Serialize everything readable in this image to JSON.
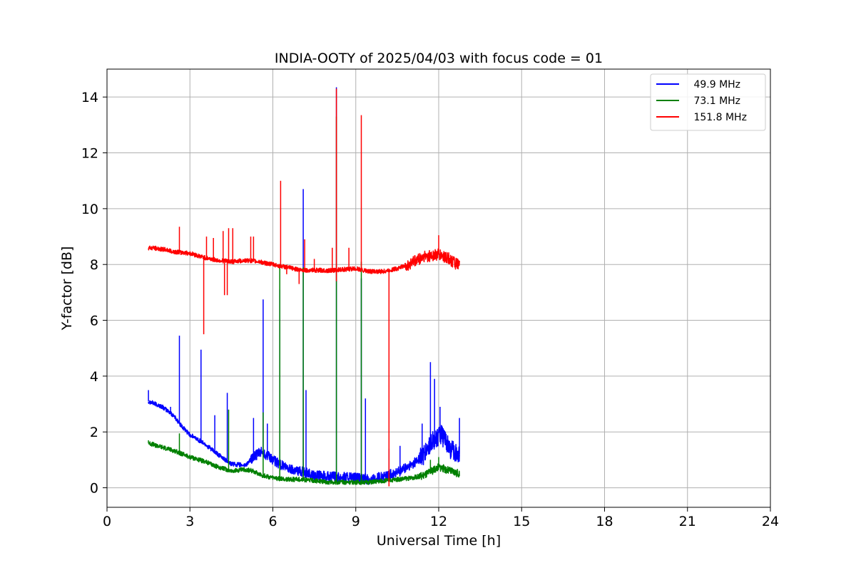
{
  "chart_data": {
    "type": "line",
    "title": "INDIA-OOTY of 2025/04/03 with focus code = 01",
    "xlabel": "Universal Time [h]",
    "ylabel": "Y-factor [dB]",
    "xlim": [
      0,
      24
    ],
    "ylim": [
      -0.7,
      15
    ],
    "xticks": [
      0,
      3,
      6,
      9,
      12,
      15,
      18,
      21,
      24
    ],
    "yticks": [
      0,
      2,
      4,
      6,
      8,
      10,
      12,
      14
    ],
    "grid": true,
    "legend_position": "top-right",
    "series": [
      {
        "name": " 49.9 MHz",
        "color": "#0000ff",
        "baseline": [
          [
            1.5,
            3.1
          ],
          [
            2.0,
            2.9
          ],
          [
            2.4,
            2.6
          ],
          [
            2.7,
            2.2
          ],
          [
            3.0,
            1.9
          ],
          [
            3.5,
            1.6
          ],
          [
            4.0,
            1.2
          ],
          [
            4.5,
            0.85
          ],
          [
            5.0,
            0.8
          ],
          [
            5.3,
            1.1
          ],
          [
            5.6,
            1.3
          ],
          [
            6.0,
            1.0
          ],
          [
            6.5,
            0.7
          ],
          [
            7.0,
            0.6
          ],
          [
            7.5,
            0.45
          ],
          [
            8.0,
            0.4
          ],
          [
            8.5,
            0.4
          ],
          [
            9.0,
            0.35
          ],
          [
            9.5,
            0.3
          ],
          [
            10.0,
            0.4
          ],
          [
            10.5,
            0.55
          ],
          [
            11.0,
            0.8
          ],
          [
            11.5,
            1.2
          ],
          [
            11.8,
            1.7
          ],
          [
            12.1,
            1.9
          ],
          [
            12.4,
            1.4
          ],
          [
            12.75,
            1.2
          ]
        ],
        "spikes": [
          [
            1.5,
            3.5
          ],
          [
            2.3,
            2.9
          ],
          [
            2.62,
            5.45
          ],
          [
            3.4,
            4.95
          ],
          [
            3.9,
            2.6
          ],
          [
            4.35,
            3.4
          ],
          [
            5.3,
            2.5
          ],
          [
            5.65,
            6.75
          ],
          [
            5.8,
            2.3
          ],
          [
            6.25,
            7.1
          ],
          [
            7.1,
            10.7
          ],
          [
            7.2,
            3.5
          ],
          [
            8.3,
            14.35
          ],
          [
            9.2,
            7.5
          ],
          [
            9.35,
            3.2
          ],
          [
            10.2,
            1.4
          ],
          [
            10.6,
            1.5
          ],
          [
            11.4,
            2.3
          ],
          [
            11.7,
            4.5
          ],
          [
            11.85,
            3.9
          ],
          [
            12.05,
            2.9
          ],
          [
            12.75,
            2.5
          ]
        ]
      },
      {
        "name": " 73.1 MHz",
        "color": "#008000",
        "baseline": [
          [
            1.5,
            1.6
          ],
          [
            2.0,
            1.45
          ],
          [
            2.5,
            1.3
          ],
          [
            3.0,
            1.1
          ],
          [
            3.5,
            0.95
          ],
          [
            4.0,
            0.75
          ],
          [
            4.5,
            0.6
          ],
          [
            5.0,
            0.65
          ],
          [
            5.3,
            0.6
          ],
          [
            5.6,
            0.45
          ],
          [
            6.0,
            0.35
          ],
          [
            6.5,
            0.3
          ],
          [
            7.0,
            0.3
          ],
          [
            7.5,
            0.25
          ],
          [
            8.0,
            0.2
          ],
          [
            8.5,
            0.2
          ],
          [
            9.0,
            0.2
          ],
          [
            9.5,
            0.2
          ],
          [
            10.0,
            0.25
          ],
          [
            10.5,
            0.3
          ],
          [
            11.0,
            0.35
          ],
          [
            11.5,
            0.45
          ],
          [
            12.0,
            0.75
          ],
          [
            12.4,
            0.6
          ],
          [
            12.75,
            0.5
          ]
        ],
        "spikes": [
          [
            1.5,
            1.7
          ],
          [
            2.62,
            1.95
          ],
          [
            4.4,
            2.8
          ],
          [
            5.65,
            2.7
          ],
          [
            6.25,
            8.0
          ],
          [
            7.1,
            7.9
          ],
          [
            8.3,
            13.3
          ],
          [
            9.2,
            8.1
          ],
          [
            11.7,
            1.0
          ],
          [
            12.0,
            1.1
          ]
        ]
      },
      {
        "name": " 151.8 MHz",
        "color": "#ff0000",
        "baseline": [
          [
            1.5,
            8.6
          ],
          [
            2.0,
            8.55
          ],
          [
            2.5,
            8.45
          ],
          [
            3.0,
            8.4
          ],
          [
            3.5,
            8.25
          ],
          [
            4.0,
            8.15
          ],
          [
            4.5,
            8.1
          ],
          [
            5.0,
            8.15
          ],
          [
            5.5,
            8.1
          ],
          [
            6.0,
            8.0
          ],
          [
            6.5,
            7.9
          ],
          [
            7.0,
            7.8
          ],
          [
            7.5,
            7.8
          ],
          [
            8.0,
            7.78
          ],
          [
            8.5,
            7.82
          ],
          [
            9.0,
            7.85
          ],
          [
            9.5,
            7.75
          ],
          [
            10.0,
            7.75
          ],
          [
            10.5,
            7.85
          ],
          [
            11.0,
            8.05
          ],
          [
            11.5,
            8.3
          ],
          [
            12.0,
            8.35
          ],
          [
            12.4,
            8.2
          ],
          [
            12.75,
            7.95
          ]
        ],
        "spikes": [
          [
            2.62,
            9.35
          ],
          [
            3.6,
            9.0
          ],
          [
            3.85,
            8.95
          ],
          [
            4.2,
            9.2
          ],
          [
            4.4,
            9.3
          ],
          [
            4.55,
            9.3
          ],
          [
            5.2,
            9.0
          ],
          [
            5.3,
            9.0
          ],
          [
            6.28,
            11.0
          ],
          [
            7.15,
            8.9
          ],
          [
            7.5,
            8.2
          ],
          [
            8.15,
            8.6
          ],
          [
            8.3,
            14.3
          ],
          [
            8.75,
            8.6
          ],
          [
            9.2,
            13.35
          ],
          [
            12.0,
            9.05
          ]
        ],
        "dips": [
          [
            3.5,
            5.5
          ],
          [
            4.25,
            6.9
          ],
          [
            4.35,
            6.9
          ],
          [
            6.5,
            7.65
          ],
          [
            6.95,
            7.3
          ],
          [
            8.3,
            7.4
          ],
          [
            10.2,
            0.05
          ]
        ]
      }
    ]
  }
}
